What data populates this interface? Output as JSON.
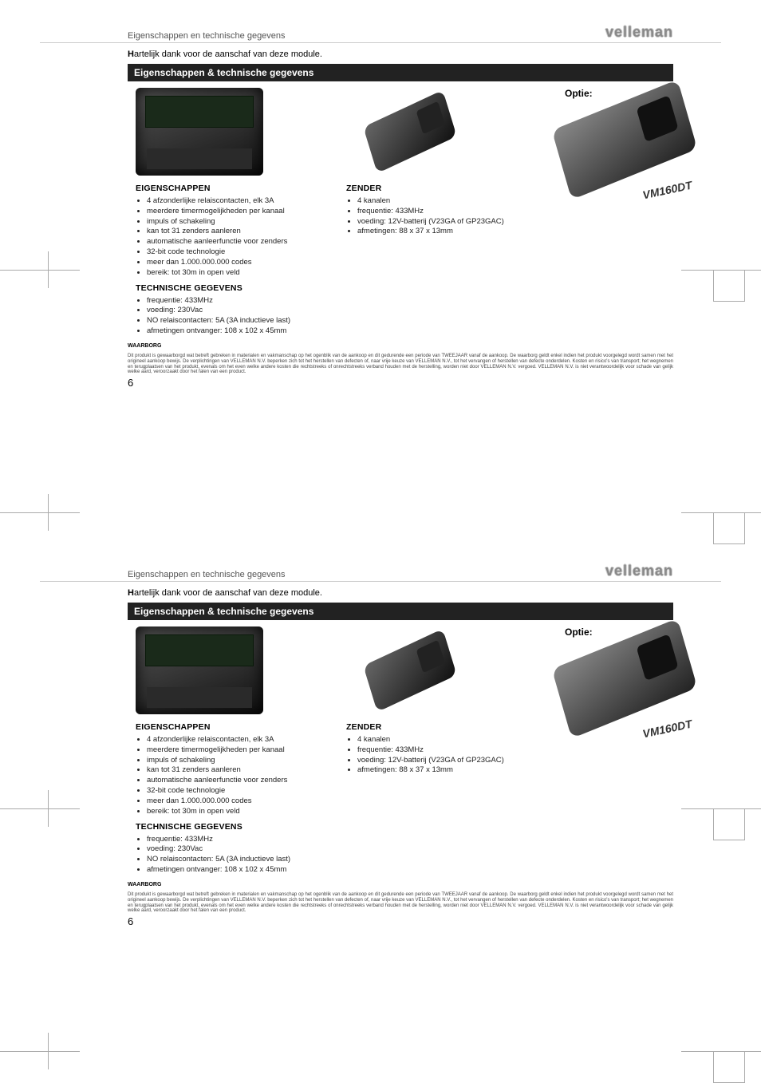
{
  "header": {
    "title": "Eigenschappen en technische gegevens",
    "brand": "velleman"
  },
  "intro_prefix": "H",
  "intro_rest": "artelijk dank voor de aanschaf van deze module.",
  "section_title": "Eigenschappen & technische gegevens",
  "receiver": {
    "heading": "EIGENSCHAPPEN",
    "items": [
      "4 afzonderlijke relaiscontacten, elk 3A",
      "meerdere timermogelijkheden per kanaal",
      "impuls of schakeling",
      "kan tot 31 zenders aanleren",
      "automatische aanleerfunctie voor zenders",
      "32-bit code technologie",
      "meer dan 1.000.000.000 codes",
      "bereik: tot 30m in open veld"
    ],
    "tech_heading": "TECHNISCHE GEGEVENS",
    "tech_items": [
      "frequentie: 433MHz",
      "voeding: 230Vac",
      "NO relaiscontacten: 5A (3A inductieve last)",
      "afmetingen ontvanger: 108 x 102 x 45mm"
    ]
  },
  "transmitter": {
    "heading": "ZENDER",
    "items": [
      "4 kanalen",
      "frequentie: 433MHz",
      "voeding: 12V-batterij (V23GA of GP23GAC)",
      "afmetingen: 88 x 37 x 13mm"
    ]
  },
  "optie": {
    "label": "Optie:",
    "model": "VM160DT"
  },
  "warranty": {
    "heading": "WAARBORG",
    "text": "Dit produkt is gewaarborgd wat betreft gebreken in materialen en vakmanschap op het ogenblik van de aankoop en dit gedurende een periode van TWEEJAAR vanaf de aankoop. De waarborg geldt enkel indien het produkt voorgelegd wordt samen met het origineel aankoop bewijs. De verplichtingen van VELLEMAN N.V. beperken zich tot het herstellen van defecten of, naar vrije keuze van VELLEMAN N.V., tot het vervangen of herstellen van defecte onderdelen. Kosten en risico's van transport; het wegnemen en terugplaatsen van het produkt, evenals om het even welke andere kosten die rechtstreeks of onrechtstreeks verband houden met de herstelling, worden niet door VELLEMAN N.V. vergoed. VELLEMAN N.V. is niet verantwoordelijk voor schade van gelijk welke aard, veroorzaakt door het falen van een product."
  },
  "page_number": "6"
}
